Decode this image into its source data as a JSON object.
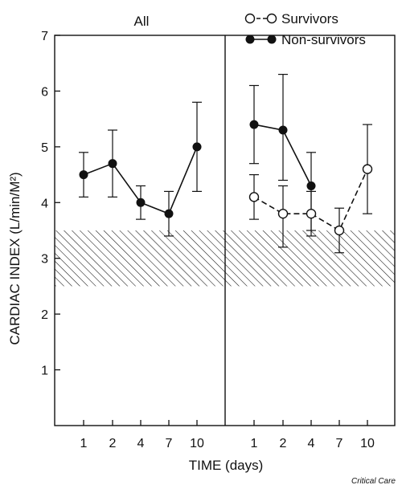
{
  "chart_data": {
    "type": "line",
    "ylabel": "CARDIAC INDEX (L/min/M²)",
    "xlabel": "TIME (days)",
    "ylim": [
      0,
      7
    ],
    "yticks": [
      1,
      2,
      3,
      4,
      5,
      6,
      7
    ],
    "x_categories": [
      "1",
      "2",
      "4",
      "7",
      "10"
    ],
    "normal_band": [
      2.5,
      3.5
    ],
    "grid": false,
    "legend_position": "top-right",
    "panels": [
      {
        "id": "all",
        "title": "All",
        "series": [
          {
            "style": "filled",
            "line": "solid",
            "points": [
              {
                "x": "1",
                "y": 4.5,
                "lo": 4.1,
                "hi": 4.9
              },
              {
                "x": "2",
                "y": 4.7,
                "lo": 4.1,
                "hi": 5.3
              },
              {
                "x": "4",
                "y": 4.0,
                "lo": 3.7,
                "hi": 4.3
              },
              {
                "x": "7",
                "y": 3.8,
                "lo": 3.4,
                "hi": 4.2
              },
              {
                "x": "10",
                "y": 5.0,
                "lo": 4.2,
                "hi": 5.8
              }
            ]
          }
        ]
      },
      {
        "id": "groups",
        "title": "",
        "series": [
          {
            "name": "Non-survivors",
            "style": "filled",
            "line": "solid",
            "points": [
              {
                "x": "1",
                "y": 5.4,
                "lo": 4.7,
                "hi": 6.1
              },
              {
                "x": "2",
                "y": 5.3,
                "lo": 4.4,
                "hi": 6.3
              },
              {
                "x": "4",
                "y": 4.3,
                "lo": 3.5,
                "hi": 4.9
              }
            ]
          },
          {
            "name": "Survivors",
            "style": "open",
            "line": "dashed",
            "points": [
              {
                "x": "1",
                "y": 4.1,
                "lo": 3.7,
                "hi": 4.5
              },
              {
                "x": "2",
                "y": 3.8,
                "lo": 3.2,
                "hi": 4.3
              },
              {
                "x": "4",
                "y": 3.8,
                "lo": 3.4,
                "hi": 4.2
              },
              {
                "x": "7",
                "y": 3.5,
                "lo": 3.1,
                "hi": 3.9
              },
              {
                "x": "10",
                "y": 4.6,
                "lo": 3.8,
                "hi": 5.4
              }
            ]
          }
        ]
      }
    ],
    "legend": [
      {
        "label": "Survivors",
        "style": "open",
        "line": "dashed"
      },
      {
        "label": "Non-survivors",
        "style": "filled",
        "line": "solid"
      }
    ]
  },
  "credit": "Critical Care"
}
